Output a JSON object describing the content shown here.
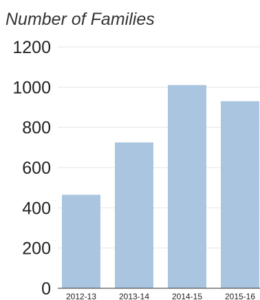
{
  "chart_data": {
    "type": "bar",
    "ylabel": "Number of Families",
    "categories": [
      "2012-13",
      "2013-14",
      "2014-15",
      "2015-16"
    ],
    "series": [
      {
        "values": [
          465,
          725,
          1010,
          930
        ]
      }
    ],
    "ylim": [
      0,
      1200
    ],
    "yticks": [
      0,
      200,
      400,
      600,
      800,
      1000,
      1200
    ],
    "grid": true,
    "bar_color": "#a9c5e0"
  }
}
